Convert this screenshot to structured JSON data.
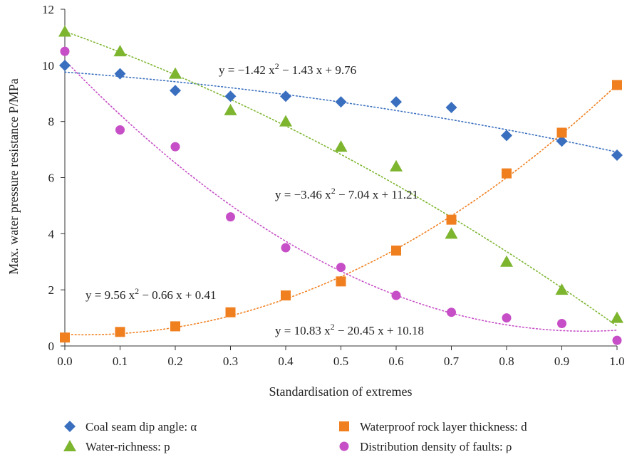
{
  "chart_data": {
    "type": "scatter",
    "xlabel": "Standardisation of extremes",
    "ylabel": "Max. water pressure resistance P/MPa",
    "xlim": [
      0,
      1
    ],
    "ylim": [
      0,
      12
    ],
    "xticks": [
      "0.0",
      "0.1",
      "0.2",
      "0.3",
      "0.4",
      "0.5",
      "0.6",
      "0.7",
      "0.8",
      "0.9",
      "1.0"
    ],
    "yticks": [
      "0",
      "2",
      "4",
      "6",
      "8",
      "10",
      "12"
    ],
    "grid": false,
    "legend_position": "bottom",
    "x": [
      0.0,
      0.1,
      0.2,
      0.3,
      0.4,
      0.5,
      0.6,
      0.7,
      0.8,
      0.9,
      1.0
    ],
    "series": [
      {
        "name": "Coal seam dip angle: α",
        "marker": "diamond",
        "color": "#3a6fbf",
        "values": [
          10.0,
          9.7,
          9.1,
          8.9,
          8.9,
          8.7,
          8.7,
          8.5,
          7.5,
          7.3,
          6.8
        ],
        "fit": {
          "a": -1.42,
          "b": -1.43,
          "c": 9.76
        },
        "equation": {
          "pre": "y = −1.42 x",
          "post": " − 1.43 x + 9.76"
        }
      },
      {
        "name": "Water-richness: p",
        "marker": "triangle",
        "color": "#7db52f",
        "values": [
          11.2,
          10.5,
          9.7,
          8.4,
          8.0,
          7.1,
          6.4,
          4.0,
          3.0,
          2.0,
          1.0
        ],
        "fit": {
          "a": -3.46,
          "b": -7.04,
          "c": 11.21
        },
        "equation": {
          "pre": "y = −3.46 x",
          "post": " − 7.04 x + 11.21"
        }
      },
      {
        "name": "Waterproof rock layer thickness: d",
        "marker": "square",
        "color": "#f07f1f",
        "values": [
          0.3,
          0.5,
          0.7,
          1.2,
          1.8,
          2.3,
          3.4,
          4.5,
          6.15,
          7.6,
          9.3
        ],
        "fit": {
          "a": 9.56,
          "b": -0.66,
          "c": 0.41
        },
        "equation": {
          "pre": "y = 9.56 x",
          "post": " − 0.66 x + 0.41"
        }
      },
      {
        "name": "Distribution density of faults: ρ",
        "marker": "circle",
        "color": "#c64ec6",
        "values": [
          10.5,
          7.7,
          7.1,
          4.6,
          3.5,
          2.8,
          1.8,
          1.2,
          1.0,
          0.8,
          0.2
        ],
        "fit": {
          "a": 10.83,
          "b": -20.45,
          "c": 10.18
        },
        "equation": {
          "pre": "y = 10.83 x",
          "post": " − 20.45 x + 10.18"
        }
      }
    ],
    "superscript": "2"
  }
}
